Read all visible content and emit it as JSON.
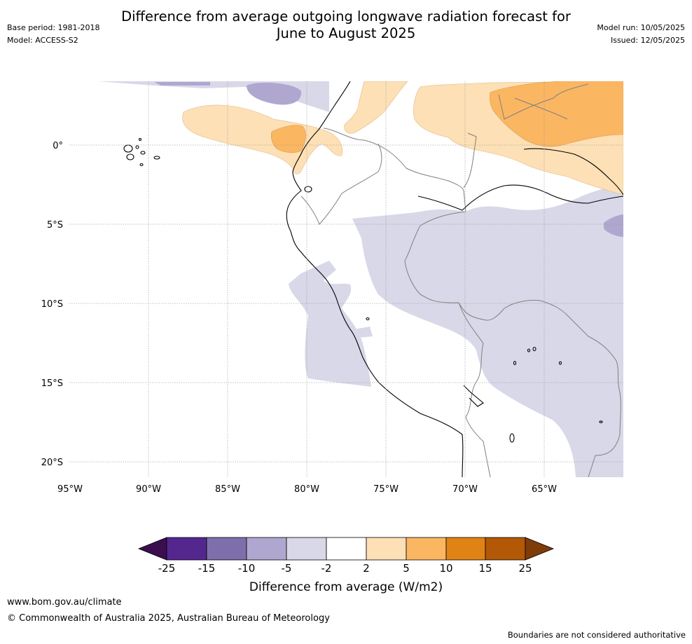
{
  "header": {
    "title_line1": "Difference from average outgoing longwave radiation forecast for",
    "title_line2": "June to August 2025",
    "base_period": "Base period: 1981-2018",
    "model": "Model: ACCESS-S2",
    "model_run": "Model run: 10/05/2025",
    "issued": "Issued: 12/05/2025"
  },
  "map": {
    "lon_labels": [
      "95°W",
      "90°W",
      "85°W",
      "80°W",
      "75°W",
      "70°W",
      "65°W"
    ],
    "lat_labels": [
      "0°",
      "5°S",
      "10°S",
      "15°S",
      "20°S"
    ],
    "grid": true,
    "coastline_color": "#000000",
    "border_color": "#808080"
  },
  "colorbar": {
    "tick_labels": [
      "-25",
      "-15",
      "-10",
      "-5",
      "-2",
      "2",
      "5",
      "10",
      "15",
      "25"
    ],
    "colors": [
      "#3b0f4f",
      "#54278f",
      "#7e6fac",
      "#b0a7d0",
      "#d8d8e9",
      "#ffffff",
      "#fde0b5",
      "#fbb662",
      "#e08315",
      "#b35806",
      "#7f3b08"
    ],
    "label": "Difference from average (W/m2)"
  },
  "footer": {
    "website": "www.bom.gov.au/climate",
    "copyright": "© Commonwealth of Australia 2025, Australian Bureau of Meteorology",
    "disclaimer": "Boundaries are not considered authoritative"
  }
}
